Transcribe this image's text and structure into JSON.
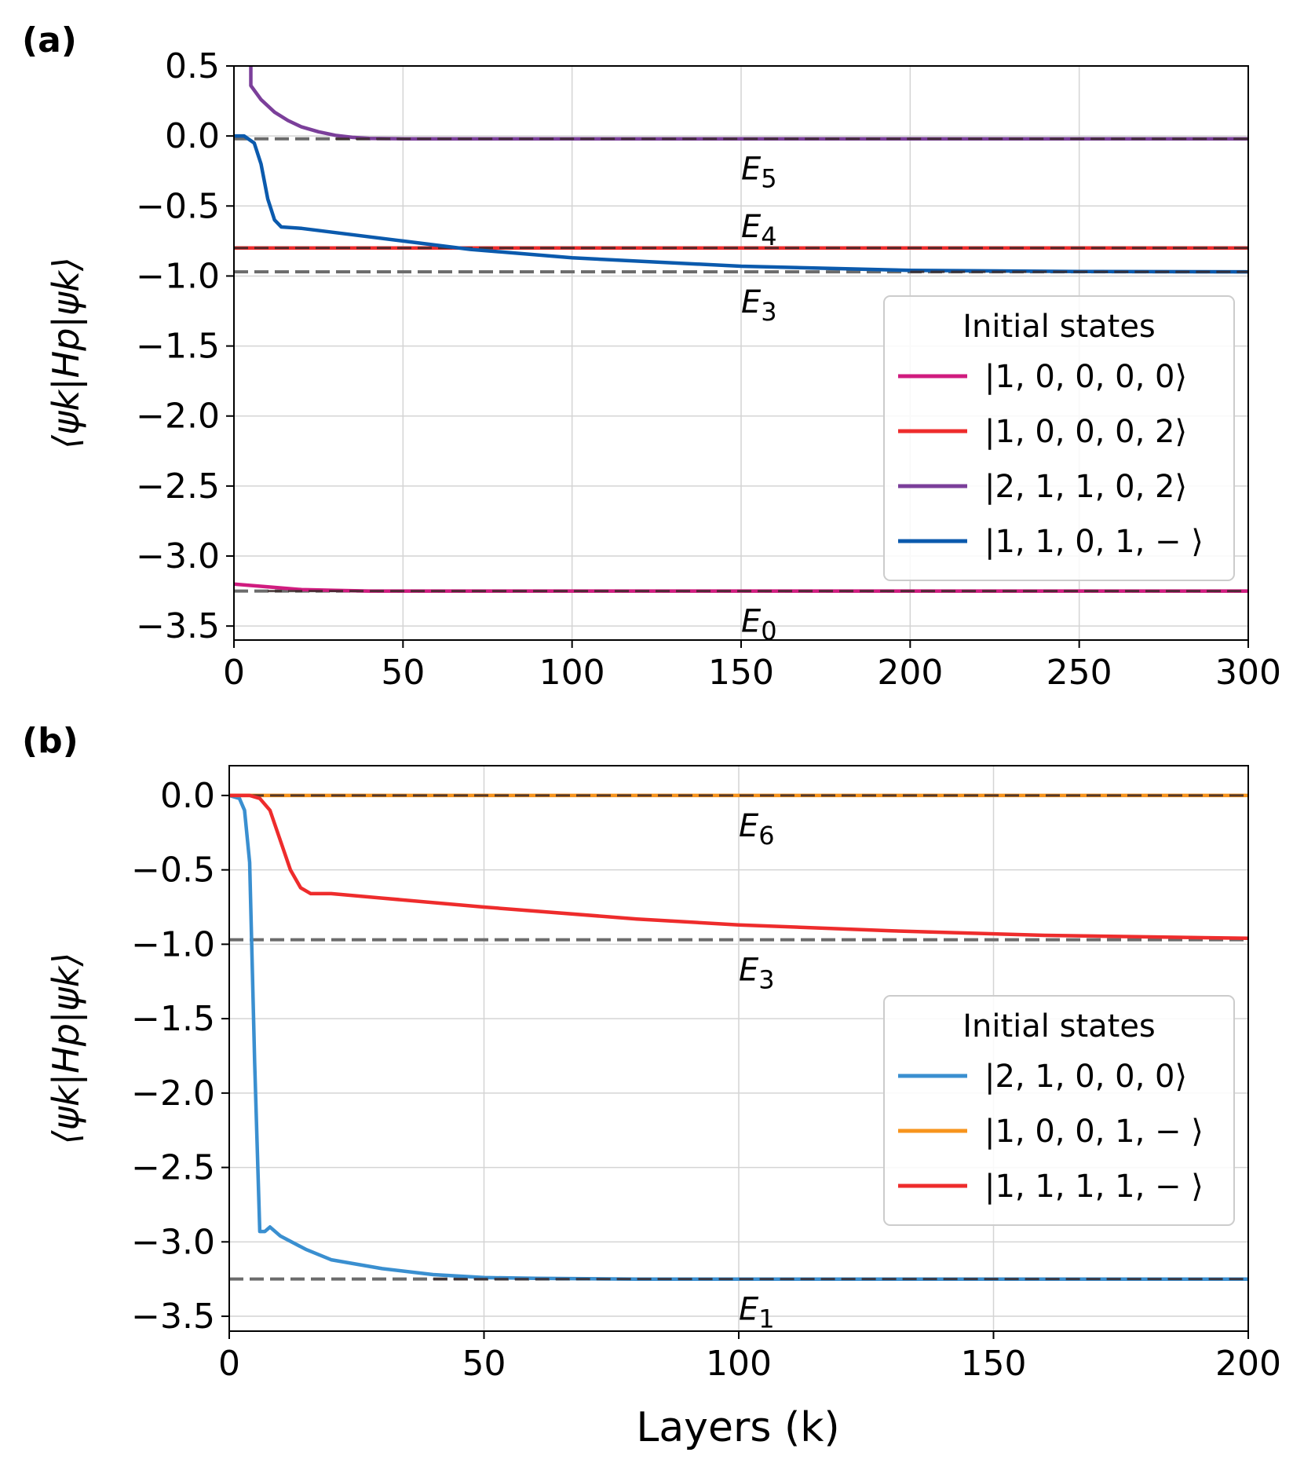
{
  "figure": {
    "xlabel": "Layers (k)"
  },
  "chart_data": [
    {
      "panel": "(a)",
      "type": "line",
      "xlim": [
        0,
        300
      ],
      "ylim": [
        -3.6,
        0.5
      ],
      "xticks": [
        0,
        50,
        100,
        150,
        200,
        250,
        300
      ],
      "yticks": [
        0.5,
        0.0,
        -0.5,
        -1.0,
        -1.5,
        -2.0,
        -2.5,
        -3.0,
        -3.5
      ],
      "xtick_labels": [
        "0",
        "50",
        "100",
        "150",
        "200",
        "250",
        "300"
      ],
      "ytick_labels": [
        "0.5",
        "0.0",
        "−0.5",
        "−1.0",
        "−1.5",
        "−2.0",
        "−2.5",
        "−3.0",
        "−3.5"
      ],
      "ylabel": "⟨ψk|Hp|ψk⟩",
      "grid": true,
      "legend": {
        "title": "Initial states",
        "placement": "center-right",
        "entries": [
          "|1, 0, 0, 0, 0⟩",
          "|1, 0, 0, 0, 2⟩",
          "|2, 1, 1, 0, 2⟩",
          "|1, 1, 0, 1, − ⟩"
        ]
      },
      "energy_levels": [
        {
          "label": "E5",
          "name": "E",
          "sub": "5",
          "value": -0.02,
          "label_side": "below"
        },
        {
          "label": "E4",
          "name": "E",
          "sub": "4",
          "value": -0.8,
          "label_side": "above"
        },
        {
          "label": "E3",
          "name": "E",
          "sub": "3",
          "value": -0.97,
          "label_side": "below"
        },
        {
          "label": "E0",
          "name": "E",
          "sub": "0",
          "value": -3.25,
          "label_side": "below"
        }
      ],
      "energy_label_x": 150,
      "series": [
        {
          "name": "|1, 0, 0, 0, 0⟩",
          "color": "#d01c7f",
          "x": [
            0,
            5,
            10,
            20,
            30,
            40,
            300
          ],
          "y": [
            -3.2,
            -3.21,
            -3.22,
            -3.24,
            -3.245,
            -3.25,
            -3.25
          ]
        },
        {
          "name": "|1, 0, 0, 0, 2⟩",
          "color": "#ee2c2c",
          "x": [
            0,
            300
          ],
          "y": [
            -0.8,
            -0.8
          ]
        },
        {
          "name": "|2, 1, 1, 0, 2⟩",
          "color": "#7b3f9a",
          "x": [
            5,
            5,
            8,
            12,
            16,
            20,
            25,
            30,
            35,
            40,
            50,
            300
          ],
          "y": [
            0.5,
            0.36,
            0.26,
            0.17,
            0.11,
            0.065,
            0.03,
            0.005,
            -0.01,
            -0.017,
            -0.02,
            -0.02
          ]
        },
        {
          "name": "|1, 1, 0, 1, − ⟩",
          "color": "#0b5aad",
          "x": [
            0,
            3,
            6,
            8,
            10,
            12,
            14,
            20,
            30,
            50,
            70,
            100,
            150,
            200,
            250,
            300
          ],
          "y": [
            0.0,
            0.0,
            -0.05,
            -0.2,
            -0.45,
            -0.6,
            -0.65,
            -0.66,
            -0.69,
            -0.75,
            -0.81,
            -0.87,
            -0.93,
            -0.96,
            -0.968,
            -0.97
          ]
        }
      ]
    },
    {
      "panel": "(b)",
      "type": "line",
      "xlim": [
        0,
        200
      ],
      "ylim": [
        -3.6,
        0.2
      ],
      "xticks": [
        0,
        50,
        100,
        150,
        200
      ],
      "yticks": [
        0.0,
        -0.5,
        -1.0,
        -1.5,
        -2.0,
        -2.5,
        -3.0,
        -3.5
      ],
      "xtick_labels": [
        "0",
        "50",
        "100",
        "150",
        "200"
      ],
      "ytick_labels": [
        "0.0",
        "−0.5",
        "−1.0",
        "−1.5",
        "−2.0",
        "−2.5",
        "−3.0",
        "−3.5"
      ],
      "ylabel": "⟨ψk|Hp|ψk⟩",
      "grid": true,
      "legend": {
        "title": "Initial states",
        "placement": "center-right",
        "entries": [
          "|2, 1, 0, 0, 0⟩",
          "|1, 0, 0, 1, − ⟩",
          "|1, 1, 1, 1, − ⟩"
        ]
      },
      "energy_levels": [
        {
          "label": "E6",
          "name": "E",
          "sub": "6",
          "value": 0.0,
          "label_side": "below"
        },
        {
          "label": "E3",
          "name": "E",
          "sub": "3",
          "value": -0.97,
          "label_side": "below"
        },
        {
          "label": "E1",
          "name": "E",
          "sub": "1",
          "value": -3.25,
          "label_side": "below"
        }
      ],
      "energy_label_x": 100,
      "series": [
        {
          "name": "|2, 1, 0, 0, 0⟩",
          "color": "#3a8fd0",
          "x": [
            0,
            2,
            3,
            4,
            5,
            6,
            7,
            8,
            10,
            15,
            20,
            30,
            40,
            50,
            60,
            80,
            200
          ],
          "y": [
            0.0,
            -0.02,
            -0.1,
            -0.45,
            -1.8,
            -2.93,
            -2.93,
            -2.9,
            -2.96,
            -3.05,
            -3.12,
            -3.18,
            -3.22,
            -3.24,
            -3.245,
            -3.25,
            -3.25
          ]
        },
        {
          "name": "|1, 0, 0, 1, − ⟩",
          "color": "#f7941d",
          "x": [
            0,
            200
          ],
          "y": [
            0.0,
            0.0
          ]
        },
        {
          "name": "|1, 1, 1, 1, − ⟩",
          "color": "#ee2c2c",
          "x": [
            0,
            4,
            6,
            8,
            10,
            12,
            14,
            16,
            20,
            30,
            50,
            80,
            100,
            130,
            160,
            200
          ],
          "y": [
            0.0,
            0.0,
            -0.02,
            -0.1,
            -0.3,
            -0.5,
            -0.62,
            -0.66,
            -0.66,
            -0.69,
            -0.75,
            -0.83,
            -0.87,
            -0.91,
            -0.94,
            -0.96
          ]
        }
      ]
    }
  ]
}
